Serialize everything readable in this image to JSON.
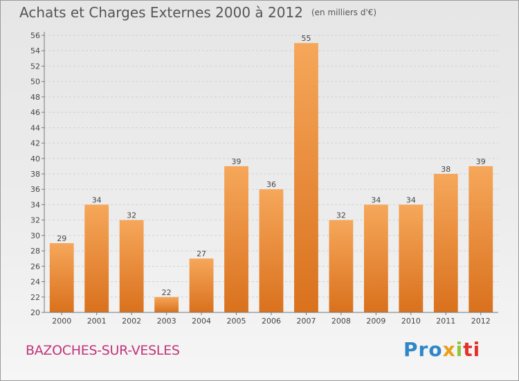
{
  "title": "Achats et Charges Externes 2000 à 2012",
  "unit": "(en milliers d'€)",
  "commune": "BAZOCHES-SUR-VESLES",
  "logo": {
    "p1": "Pro",
    "p2": "x",
    "p3": "i",
    "p4": "ti"
  },
  "colors": {
    "bar_light": "#f6a75a",
    "bar_dark": "#d9711d",
    "title": "#555555",
    "commune": "#c0337a"
  },
  "chart_data": {
    "type": "bar",
    "categories": [
      "2000",
      "2001",
      "2002",
      "2003",
      "2004",
      "2005",
      "2006",
      "2007",
      "2008",
      "2009",
      "2010",
      "2011",
      "2012"
    ],
    "values": [
      29,
      34,
      32,
      22,
      27,
      39,
      36,
      55,
      32,
      34,
      34,
      38,
      39
    ],
    "ylim": [
      20,
      56
    ],
    "yticks": [
      20,
      22,
      24,
      26,
      28,
      30,
      32,
      34,
      36,
      38,
      40,
      42,
      44,
      46,
      48,
      50,
      52,
      54,
      56
    ],
    "grid": true,
    "legend": "none"
  }
}
